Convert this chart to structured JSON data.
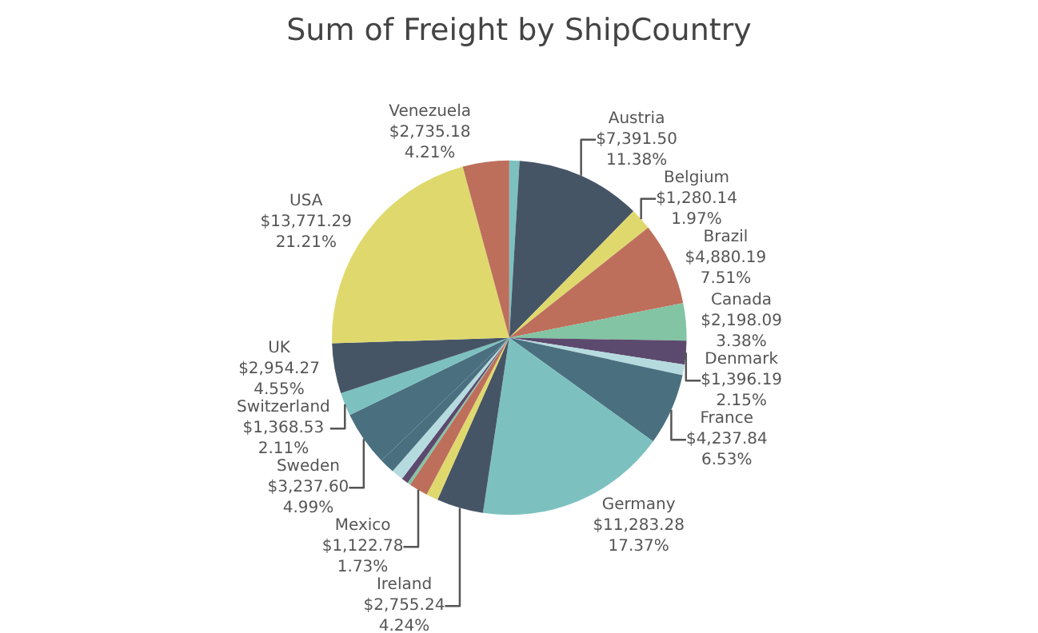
{
  "chart_data": {
    "type": "pie",
    "title": "Sum of Freight by ShipCountry",
    "legend": false,
    "categories": [
      null,
      "Austria",
      "Belgium",
      "Brazil",
      "Canada",
      "Denmark",
      null,
      "France",
      "Germany",
      "Ireland",
      null,
      "Mexico",
      null,
      null,
      null,
      null,
      "Sweden",
      "Switzerland",
      "UK",
      "USA",
      "Venezuela"
    ],
    "values": [
      600,
      7391.5,
      1280.14,
      4880.19,
      2198.09,
      1396.19,
      630,
      4237.84,
      11283.28,
      2755.24,
      700,
      1122.78,
      180,
      400,
      700,
      900,
      3237.6,
      1368.53,
      2954.27,
      13771.29,
      2735.18
    ],
    "value_labels": [
      null,
      "$7,391.50\n11.38%",
      "$1,280.14\n1.97%",
      "$4,880.19\n7.51%",
      "$2,198.09\n3.38%",
      "$1,396.19\n2.15%",
      null,
      "$4,237.84\n6.53%",
      "$11,283.28\n17.37%",
      "$2,755.24\n4.24%",
      null,
      "$1,122.78\n1.73%",
      null,
      null,
      null,
      null,
      "$3,237.60\n4.99%",
      "$1,368.53\n2.11%",
      "$2,954.27\n4.55%",
      "$13,771.29\n21.21%",
      "$2,735.18\n4.21%"
    ],
    "colors": [
      "#7cc1bf",
      "#465566",
      "#dfd96d",
      "#bd6f5c",
      "#82c4a3",
      "#5c4a6e",
      "#b5dbdf",
      "#4a7080",
      "#7cc1bf",
      "#465566",
      "#dfd96d",
      "#bd6f5c",
      "#82c4a3",
      "#5c4a6e",
      "#b5dbdf",
      "#4a7080",
      "#4a7080",
      "#7cc1bf",
      "#465566",
      "#dfd96d",
      "#bd6f5c"
    ]
  }
}
